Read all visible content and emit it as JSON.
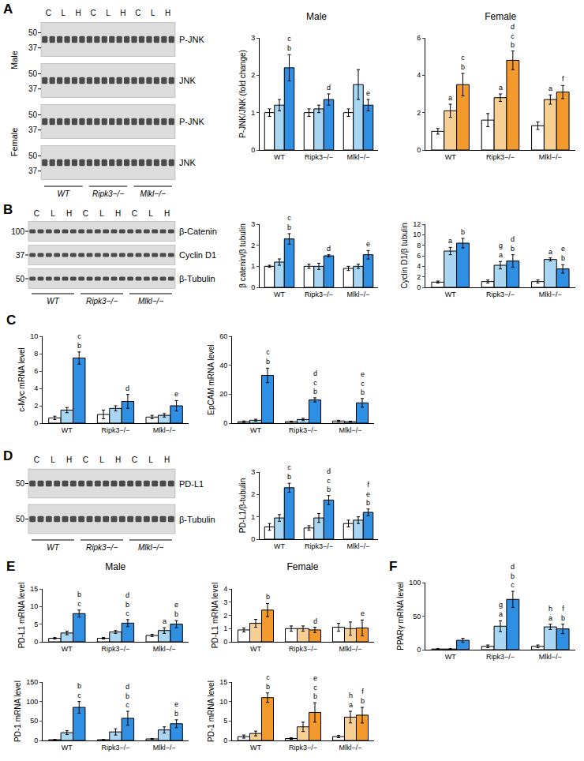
{
  "chart_data": [
    {
      "type": "bar",
      "title": "Male",
      "y_label": "P-JNK/JNK (fold change)",
      "categories": [
        "WT",
        "Ripk3−/−",
        "Mlkl−/−"
      ],
      "ylim": [
        0,
        3
      ],
      "yticks": [
        0,
        1,
        2,
        3
      ],
      "series": [
        {
          "name": "C",
          "color": "#ffffff",
          "values": [
            1.0,
            1.0,
            1.0
          ],
          "errors": [
            0.1,
            0.1,
            0.1
          ],
          "annotations": [
            [],
            [],
            []
          ]
        },
        {
          "name": "L",
          "color": "#a9d6f2",
          "values": [
            1.2,
            1.1,
            1.75
          ],
          "errors": [
            0.15,
            0.1,
            0.4
          ],
          "annotations": [
            [],
            [],
            []
          ]
        },
        {
          "name": "H",
          "color": "#2f8fe3",
          "values": [
            2.2,
            1.35,
            1.2
          ],
          "errors": [
            0.35,
            0.15,
            0.15
          ],
          "annotations": [
            [
              "c",
              "b"
            ],
            [
              "d"
            ],
            [
              "e"
            ]
          ]
        }
      ]
    },
    {
      "type": "bar",
      "title": "Female",
      "categories": [
        "WT",
        "Ripk3−/−",
        "Mlkl−/−"
      ],
      "ylim": [
        0,
        6
      ],
      "yticks": [
        0,
        2,
        4,
        6
      ],
      "series": [
        {
          "name": "C",
          "color": "#ffffff",
          "values": [
            1.0,
            1.6,
            1.3
          ],
          "errors": [
            0.15,
            0.35,
            0.2
          ],
          "annotations": [
            [],
            [],
            []
          ]
        },
        {
          "name": "L",
          "color": "#f7cf93",
          "values": [
            2.1,
            2.8,
            2.7
          ],
          "errors": [
            0.35,
            0.2,
            0.25
          ],
          "annotations": [
            [
              "a"
            ],
            [
              "a"
            ],
            [
              "a"
            ]
          ]
        },
        {
          "name": "H",
          "color": "#f29a2e",
          "values": [
            3.5,
            4.8,
            3.1
          ],
          "errors": [
            0.6,
            0.5,
            0.35
          ],
          "annotations": [
            [
              "c",
              "b"
            ],
            [
              "d",
              "c",
              "b"
            ],
            [
              "f"
            ]
          ]
        }
      ]
    },
    {
      "type": "bar",
      "y_label": "β catenin/β tubulin",
      "categories": [
        "WT",
        "Ripk3−/−",
        "Mlkl−/−"
      ],
      "ylim": [
        0,
        3
      ],
      "yticks": [
        0,
        1,
        2,
        3
      ],
      "series": [
        {
          "name": "C",
          "color": "#ffffff",
          "values": [
            1.0,
            1.0,
            0.9
          ],
          "errors": [
            0.05,
            0.1,
            0.1
          ],
          "annotations": [
            [],
            [],
            []
          ]
        },
        {
          "name": "L",
          "color": "#a9d6f2",
          "values": [
            1.2,
            1.0,
            1.0
          ],
          "errors": [
            0.15,
            0.15,
            0.1
          ],
          "annotations": [
            [],
            [],
            []
          ]
        },
        {
          "name": "H",
          "color": "#2f8fe3",
          "values": [
            2.3,
            1.5,
            1.55
          ],
          "errors": [
            0.25,
            0.05,
            0.2
          ],
          "annotations": [
            [
              "c",
              "b"
            ],
            [
              "d"
            ],
            [
              "e"
            ]
          ]
        }
      ]
    },
    {
      "type": "bar",
      "y_label": "Cyclin D1/β tubulin",
      "categories": [
        "WT",
        "Ripk3−/−",
        "Mlkl−/−"
      ],
      "ylim": [
        0,
        12
      ],
      "yticks": [
        0,
        2,
        4,
        6,
        8,
        10,
        12
      ],
      "series": [
        {
          "name": "C",
          "color": "#ffffff",
          "values": [
            1.0,
            1.1,
            1.1
          ],
          "errors": [
            0.2,
            0.3,
            0.3
          ],
          "annotations": [
            [],
            [],
            []
          ]
        },
        {
          "name": "L",
          "color": "#a9d6f2",
          "values": [
            6.9,
            4.2,
            5.3
          ],
          "errors": [
            0.7,
            0.7,
            0.3
          ],
          "annotations": [
            [
              "a"
            ],
            [
              "g",
              "a"
            ],
            [
              "a"
            ]
          ]
        },
        {
          "name": "H",
          "color": "#2f8fe3",
          "values": [
            8.4,
            5.0,
            3.5
          ],
          "errors": [
            0.9,
            1.2,
            0.8
          ],
          "annotations": [
            [
              "b"
            ],
            [
              "d",
              "b"
            ],
            [
              "e",
              "b"
            ]
          ]
        }
      ]
    },
    {
      "type": "bar",
      "panel": "C",
      "y_label": "c-Myc mRNA level",
      "categories": [
        "WT",
        "Ripk3−/−",
        "Mlkl−/−"
      ],
      "ylim": [
        0,
        10
      ],
      "yticks": [
        0,
        2,
        4,
        6,
        8,
        10
      ],
      "series": [
        {
          "name": "C",
          "color": "#ffffff",
          "values": [
            0.6,
            1.0,
            0.7
          ],
          "errors": [
            0.2,
            0.5,
            0.2
          ],
          "annotations": [
            [],
            [],
            []
          ]
        },
        {
          "name": "L",
          "color": "#a9d6f2",
          "values": [
            1.5,
            1.7,
            0.9
          ],
          "errors": [
            0.3,
            0.3,
            0.2
          ],
          "annotations": [
            [],
            [],
            []
          ]
        },
        {
          "name": "H",
          "color": "#2f8fe3",
          "values": [
            7.5,
            2.5,
            2.0
          ],
          "errors": [
            0.7,
            0.8,
            0.6
          ],
          "annotations": [
            [
              "c",
              "b"
            ],
            [
              "d"
            ],
            [
              "e"
            ]
          ]
        }
      ]
    },
    {
      "type": "bar",
      "y_label": "EpCAM mRNA level",
      "categories": [
        "WT",
        "Ripk3−/−",
        "Mlkl−/−"
      ],
      "ylim": [
        0,
        60
      ],
      "yticks": [
        0,
        20,
        40,
        60
      ],
      "series": [
        {
          "name": "C",
          "color": "#ffffff",
          "values": [
            1,
            1,
            1.5
          ],
          "errors": [
            0.5,
            0.3,
            0.5
          ],
          "annotations": [
            [],
            [],
            []
          ]
        },
        {
          "name": "L",
          "color": "#a9d6f2",
          "values": [
            2,
            2.5,
            1
          ],
          "errors": [
            0.7,
            0.8,
            0.3
          ],
          "annotations": [
            [],
            [],
            []
          ]
        },
        {
          "name": "H",
          "color": "#2f8fe3",
          "values": [
            33,
            16,
            14
          ],
          "errors": [
            5,
            1.5,
            3
          ],
          "annotations": [
            [
              "c",
              "b"
            ],
            [
              "d",
              "c",
              "b"
            ],
            [
              "e",
              "c",
              "b"
            ]
          ]
        }
      ]
    },
    {
      "type": "bar",
      "y_label": "PD-L1/β-tubulin",
      "categories": [
        "WT",
        "Ripk3−/−",
        "Mlkl−/−"
      ],
      "ylim": [
        0,
        3
      ],
      "yticks": [
        0,
        1,
        2,
        3
      ],
      "series": [
        {
          "name": "C",
          "color": "#ffffff",
          "values": [
            0.55,
            0.5,
            0.7
          ],
          "errors": [
            0.15,
            0.1,
            0.15
          ],
          "annotations": [
            [],
            [],
            []
          ]
        },
        {
          "name": "L",
          "color": "#a9d6f2",
          "values": [
            0.95,
            0.95,
            0.85
          ],
          "errors": [
            0.15,
            0.2,
            0.15
          ],
          "annotations": [
            [],
            [],
            []
          ]
        },
        {
          "name": "H",
          "color": "#2f8fe3",
          "values": [
            2.3,
            1.75,
            1.2
          ],
          "errors": [
            0.2,
            0.2,
            0.15
          ],
          "annotations": [
            [
              "c",
              "b"
            ],
            [
              "d",
              "c",
              "b"
            ],
            [
              "f",
              "e",
              "b"
            ]
          ]
        }
      ]
    },
    {
      "type": "bar",
      "panel": "E",
      "title": "Male",
      "y_label": "PD-L1 mRNA level",
      "categories": [
        "WT",
        "Ripk3−/−",
        "Mlkl−/−"
      ],
      "ylim": [
        0,
        15
      ],
      "yticks": [
        0,
        5,
        10,
        15
      ],
      "series": [
        {
          "name": "C",
          "color": "#ffffff",
          "values": [
            1.0,
            1.0,
            1.8
          ],
          "errors": [
            0.2,
            0.2,
            0.3
          ],
          "annotations": [
            [],
            [],
            []
          ]
        },
        {
          "name": "L",
          "color": "#a9d6f2",
          "values": [
            2.5,
            2.8,
            3.2
          ],
          "errors": [
            0.5,
            0.4,
            0.8
          ],
          "annotations": [
            [],
            [],
            [
              "a"
            ]
          ]
        },
        {
          "name": "H",
          "color": "#2f8fe3",
          "values": [
            8.0,
            5.3,
            5.0
          ],
          "errors": [
            1.0,
            1.0,
            1.0
          ],
          "annotations": [
            [
              "b",
              "c"
            ],
            [
              "d",
              "b",
              "c"
            ],
            [
              "e",
              "b"
            ]
          ]
        }
      ]
    },
    {
      "type": "bar",
      "title": "Female",
      "y_label": "PD-L1 mRNA level",
      "categories": [
        "WT",
        "Ripk3−/−",
        "Mlkl−/−"
      ],
      "ylim": [
        0,
        4
      ],
      "yticks": [
        0,
        1,
        2,
        3,
        4
      ],
      "series": [
        {
          "name": "C",
          "color": "#ffffff",
          "values": [
            0.9,
            1.0,
            1.1
          ],
          "errors": [
            0.15,
            0.2,
            0.3
          ],
          "annotations": [
            [],
            [],
            []
          ]
        },
        {
          "name": "L",
          "color": "#f7cf93",
          "values": [
            1.4,
            1.0,
            1.0
          ],
          "errors": [
            0.3,
            0.2,
            0.5
          ],
          "annotations": [
            [],
            [],
            []
          ]
        },
        {
          "name": "H",
          "color": "#f29a2e",
          "values": [
            2.4,
            0.9,
            1.05
          ],
          "errors": [
            0.5,
            0.2,
            0.6
          ],
          "annotations": [
            [
              "b"
            ],
            [
              "d"
            ],
            [
              "e"
            ]
          ]
        }
      ]
    },
    {
      "type": "bar",
      "y_label": "PD-1 mRNA level",
      "categories": [
        "WT",
        "Ripk3−/−",
        "Mlkl−/−"
      ],
      "ylim": [
        0,
        150
      ],
      "yticks": [
        0,
        50,
        100,
        150
      ],
      "series": [
        {
          "name": "C",
          "color": "#ffffff",
          "values": [
            2,
            2,
            4
          ],
          "errors": [
            0.5,
            0.5,
            1
          ],
          "annotations": [
            [],
            [],
            []
          ]
        },
        {
          "name": "L",
          "color": "#a9d6f2",
          "values": [
            20,
            22,
            27
          ],
          "errors": [
            5,
            8,
            8
          ],
          "annotations": [
            [],
            [],
            []
          ]
        },
        {
          "name": "H",
          "color": "#2f8fe3",
          "values": [
            85,
            57,
            43
          ],
          "errors": [
            15,
            18,
            10
          ],
          "annotations": [
            [
              "b",
              "c"
            ],
            [
              "d",
              "b",
              "c"
            ],
            [
              "e",
              "b"
            ]
          ]
        }
      ]
    },
    {
      "type": "bar",
      "y_label": "PD-1 mRNA level",
      "categories": [
        "WT",
        "Ripk3−/−",
        "Mlkl−/−"
      ],
      "ylim": [
        0,
        15
      ],
      "yticks": [
        0,
        5,
        10,
        15
      ],
      "series": [
        {
          "name": "C",
          "color": "#ffffff",
          "values": [
            1.0,
            0.5,
            1.0
          ],
          "errors": [
            0.4,
            0.2,
            0.3
          ],
          "annotations": [
            [],
            [],
            []
          ]
        },
        {
          "name": "L",
          "color": "#f7cf93",
          "values": [
            1.8,
            3.5,
            6.0
          ],
          "errors": [
            0.6,
            1.2,
            1.5
          ],
          "annotations": [
            [],
            [],
            [
              "h",
              "a"
            ]
          ]
        },
        {
          "name": "H",
          "color": "#f29a2e",
          "values": [
            11,
            7.2,
            6.5
          ],
          "errors": [
            1.2,
            2.5,
            2
          ],
          "annotations": [
            [
              "c",
              "b"
            ],
            [
              "e",
              "c",
              "b"
            ],
            [
              "f",
              "b"
            ]
          ]
        }
      ]
    },
    {
      "type": "bar",
      "panel": "F",
      "y_label": "PPARγ mRNA level",
      "categories": [
        "WT",
        "Ripk3−/−",
        "Mlkl−/−"
      ],
      "ylim": [
        0,
        100
      ],
      "yticks": [
        0,
        50,
        100
      ],
      "series": [
        {
          "name": "C",
          "color": "#ffffff",
          "values": [
            1,
            5,
            5
          ],
          "errors": [
            0.5,
            2,
            2
          ],
          "annotations": [
            [],
            [],
            []
          ]
        },
        {
          "name": "L",
          "color": "#a9d6f2",
          "values": [
            1,
            35,
            34
          ],
          "errors": [
            0.5,
            8,
            4
          ],
          "annotations": [
            [],
            [
              "g",
              "a"
            ],
            [
              "h",
              "a"
            ]
          ]
        },
        {
          "name": "H",
          "color": "#2f8fe3",
          "values": [
            14,
            75,
            31
          ],
          "errors": [
            3,
            12,
            7
          ],
          "annotations": [
            [],
            [
              "d",
              "b",
              "c"
            ],
            [
              "f",
              "b"
            ]
          ]
        }
      ]
    }
  ],
  "blots": [
    {
      "panel": "A",
      "lanes": [
        "C",
        "L",
        "H",
        "C",
        "L",
        "H",
        "C",
        "L",
        "H"
      ],
      "groups": [
        "WT",
        "Ripk3−/−",
        "Mlkl−/−"
      ],
      "side_labels": [
        "Male",
        "Female"
      ],
      "rows": [
        {
          "label": "P-JNK",
          "markers": [
            50,
            37
          ]
        },
        {
          "label": "JNK",
          "markers": [
            50,
            37
          ]
        },
        {
          "label": "P-JNK",
          "markers": [
            50,
            37
          ]
        },
        {
          "label": "JNK",
          "markers": [
            50,
            37
          ]
        }
      ]
    },
    {
      "panel": "B",
      "lanes": [
        "C",
        "L",
        "H",
        "C",
        "L",
        "H",
        "C",
        "L",
        "H"
      ],
      "groups": [
        "WT",
        "Ripk3−/−",
        "Mlkl−/−"
      ],
      "rows": [
        {
          "label": "β-Catenin",
          "markers": [
            100
          ]
        },
        {
          "label": "Cyclin D1",
          "markers": [
            37
          ]
        },
        {
          "label": "β-Tubulin",
          "markers": [
            50
          ]
        }
      ]
    },
    {
      "panel": "D",
      "lanes": [
        "C",
        "L",
        "H",
        "C",
        "L",
        "H",
        "C",
        "L",
        "H"
      ],
      "groups": [
        "WT",
        "Ripk3−/−",
        "Mlkl−/−"
      ],
      "rows": [
        {
          "label": "PD-L1",
          "markers": [
            50
          ]
        },
        {
          "label": "β-Tubulin",
          "markers": [
            50
          ]
        }
      ]
    }
  ]
}
